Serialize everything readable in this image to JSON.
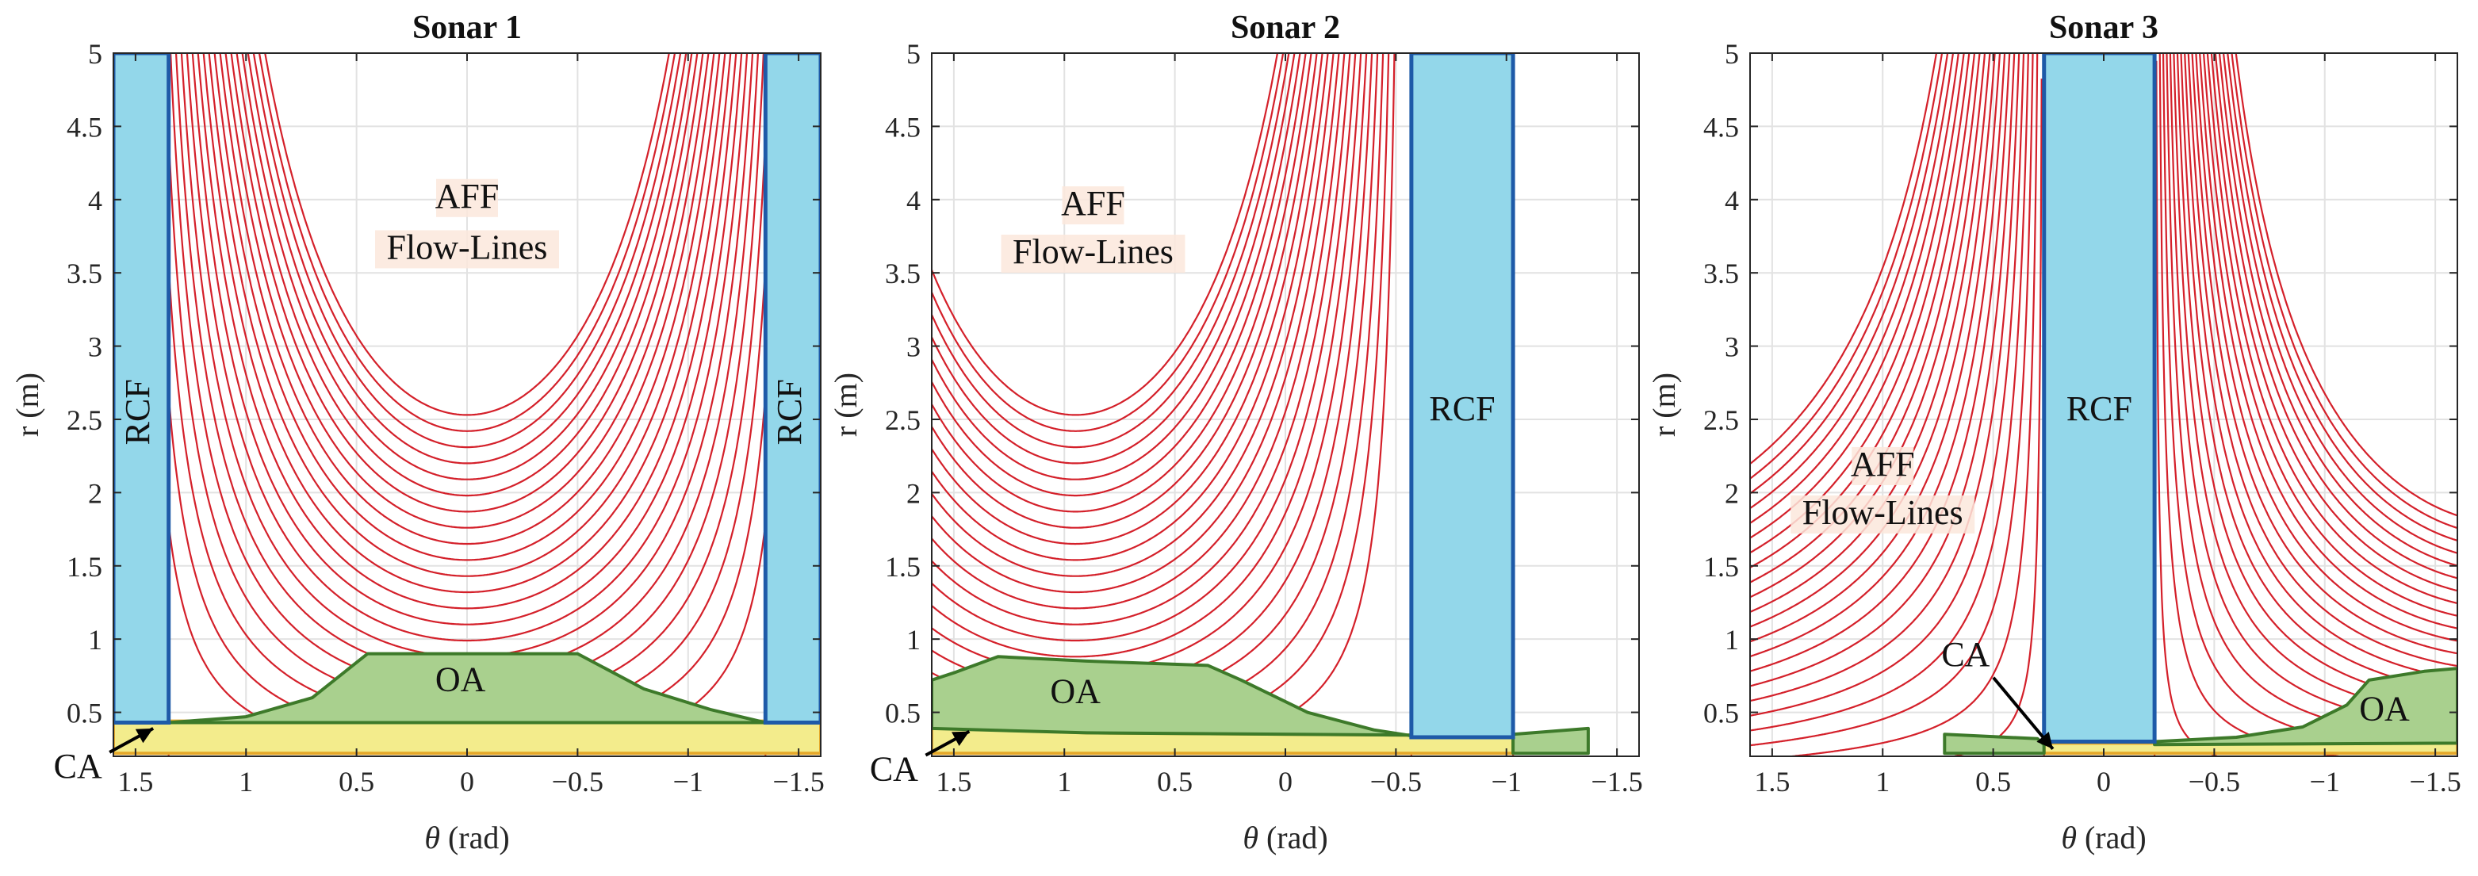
{
  "colors": {
    "flow_line": "#d4202a",
    "rcf_fill": "#93d7ea",
    "rcf_edge": "#1e5aa8",
    "oa_fill": "#a9d08e",
    "oa_edge": "#3d7a2a",
    "ca_fill": "#f3ec8c",
    "ca_edge": "#e5a82a",
    "grid": "#e2e2e2",
    "axes": "#262626",
    "label_bg": "#fbe7dc"
  },
  "chart_data": [
    {
      "type": "line",
      "title": "Sonar 1",
      "xlabel_symbol": "θ",
      "xlabel_unit": "(rad)",
      "ylabel": "r (m)",
      "xlim": [
        1.6,
        -1.6
      ],
      "ylim": [
        0.2,
        5
      ],
      "xticks": [
        1.5,
        1,
        0.5,
        0,
        -0.5,
        -1,
        -1.5
      ],
      "xtick_labels": [
        "1.5",
        "1",
        "0.5",
        "0",
        "−0.5",
        "−1",
        "−1.5"
      ],
      "yticks": [
        0.5,
        1,
        1.5,
        2,
        2.5,
        3,
        3.5,
        4,
        4.5,
        5
      ],
      "ytick_labels": [
        "0.5",
        "1",
        "1.5",
        "2",
        "2.5",
        "3",
        "3.5",
        "4",
        "4.5",
        "5"
      ],
      "grid": true,
      "flow_lines": {
        "family": "funnel",
        "center": 0.0,
        "count": 22,
        "wide": 1.5,
        "walls": [
          [
            1.35,
            2.05
          ],
          [
            -1.35,
            2.05
          ]
        ]
      },
      "rcf_regions": [
        {
          "theta_range": [
            1.35,
            1.6
          ],
          "r_range": [
            0.43,
            5
          ],
          "label": "RCF",
          "vertical": true
        },
        {
          "theta_range": [
            -1.6,
            -1.35
          ],
          "r_range": [
            0.43,
            5
          ],
          "label": "RCF",
          "vertical": true
        }
      ],
      "oa_regions": [
        {
          "label": "OA",
          "label_at": [
            0.03,
            0.7
          ],
          "polygon": [
            [
              1.35,
              0.43
            ],
            [
              1.0,
              0.47
            ],
            [
              0.7,
              0.6
            ],
            [
              0.5,
              0.84
            ],
            [
              0.45,
              0.9
            ],
            [
              0.2,
              0.9
            ],
            [
              -0.1,
              0.9
            ],
            [
              -0.5,
              0.9
            ],
            [
              -0.8,
              0.66
            ],
            [
              -1.1,
              0.52
            ],
            [
              -1.35,
              0.43
            ],
            [
              -1.35,
              0.43
            ],
            [
              1.35,
              0.43
            ]
          ]
        }
      ],
      "ca_regions": [
        {
          "polygon": [
            [
              1.6,
              0.44
            ],
            [
              -1.6,
              0.44
            ],
            [
              -1.6,
              0.22
            ],
            [
              1.6,
              0.22
            ]
          ]
        }
      ],
      "text_labels": [
        {
          "text": "AFF",
          "at": [
            0.0,
            4.0
          ]
        },
        {
          "text": "Flow-Lines",
          "at": [
            0.0,
            3.65
          ]
        }
      ],
      "ca_annotation": {
        "text": "CA",
        "arrow_to": [
          1.42,
          0.39
        ]
      }
    },
    {
      "type": "line",
      "title": "Sonar 2",
      "xlabel_symbol": "θ",
      "xlabel_unit": "(rad)",
      "ylabel": "r (m)",
      "xlim": [
        1.6,
        -1.6
      ],
      "ylim": [
        0.2,
        5
      ],
      "xticks": [
        1.5,
        1,
        0.5,
        0,
        -0.5,
        -1,
        -1.5
      ],
      "xtick_labels": [
        "1.5",
        "1",
        "0.5",
        "0",
        "−0.5",
        "−1",
        "−1.5"
      ],
      "yticks": [
        0.5,
        1,
        1.5,
        2,
        2.5,
        3,
        3.5,
        4,
        4.5,
        5
      ],
      "ytick_labels": [
        "0.5",
        "1",
        "1.5",
        "2",
        "2.5",
        "3",
        "3.5",
        "4",
        "4.5",
        "5"
      ],
      "grid": true,
      "flow_lines": {
        "family": "funnel",
        "center": 0.95,
        "count": 22,
        "wide": 1.5,
        "walls": [
          [
            -0.57,
            1.92
          ],
          [
            -1.03,
            2.1
          ]
        ]
      },
      "rcf_regions": [
        {
          "theta_range": [
            -1.03,
            -0.57
          ],
          "r_range": [
            0.33,
            5
          ],
          "label": "RCF",
          "vertical": false
        }
      ],
      "oa_regions": [
        {
          "label": "OA",
          "label_at": [
            0.95,
            0.62
          ],
          "polygon": [
            [
              1.6,
              0.72
            ],
            [
              1.5,
              0.77
            ],
            [
              1.3,
              0.88
            ],
            [
              0.9,
              0.85
            ],
            [
              0.35,
              0.82
            ],
            [
              0.2,
              0.72
            ],
            [
              -0.1,
              0.5
            ],
            [
              -0.4,
              0.38
            ],
            [
              -0.57,
              0.34
            ],
            [
              -1.03,
              0.34
            ],
            [
              -1.03,
              0.34
            ],
            [
              0.9,
              0.36
            ],
            [
              1.6,
              0.39
            ]
          ]
        },
        {
          "label": "",
          "label_at": [
            0,
            0
          ],
          "polygon": [
            [
              -1.03,
              0.35
            ],
            [
              -1.37,
              0.39
            ],
            [
              -1.37,
              0.22
            ],
            [
              -1.03,
              0.22
            ]
          ]
        }
      ],
      "ca_regions": [
        {
          "polygon": [
            [
              1.6,
              0.4
            ],
            [
              0.9,
              0.36
            ],
            [
              -1.03,
              0.34
            ],
            [
              -1.03,
              0.22
            ],
            [
              1.6,
              0.22
            ]
          ]
        }
      ],
      "text_labels": [
        {
          "text": "AFF",
          "at": [
            0.87,
            3.95
          ]
        },
        {
          "text": "Flow-Lines",
          "at": [
            0.87,
            3.62
          ]
        }
      ],
      "ca_annotation": {
        "text": "CA",
        "arrow_to": [
          1.43,
          0.37
        ]
      }
    },
    {
      "type": "line",
      "title": "Sonar 3",
      "xlabel_symbol": "θ",
      "xlabel_unit": "(rad)",
      "ylabel": "r (m)",
      "xlim": [
        1.6,
        -1.6
      ],
      "ylim": [
        0.2,
        5
      ],
      "xticks": [
        1.5,
        1,
        0.5,
        0,
        -0.5,
        -1,
        -1.5
      ],
      "xtick_labels": [
        "1.5",
        "1",
        "0.5",
        "0",
        "−0.5",
        "−1",
        "−1.5"
      ],
      "yticks": [
        0.5,
        1,
        1.5,
        2,
        2.5,
        3,
        3.5,
        4,
        4.5,
        5
      ],
      "ytick_labels": [
        "0.5",
        "1",
        "1.5",
        "2",
        "2.5",
        "3",
        "3.5",
        "4",
        "4.5",
        "5"
      ],
      "grid": true,
      "flow_lines": {
        "family": "dual",
        "center": 0.0,
        "count": 22,
        "walls": [
          [
            0.27,
            2.0
          ],
          [
            -0.23,
            2.0
          ]
        ]
      },
      "rcf_regions": [
        {
          "theta_range": [
            -0.23,
            0.27
          ],
          "r_range": [
            0.3,
            5
          ],
          "label": "RCF",
          "vertical": false
        }
      ],
      "oa_regions": [
        {
          "label": "OA",
          "label_at": [
            -1.27,
            0.5
          ],
          "polygon": [
            [
              -0.23,
              0.3
            ],
            [
              -0.6,
              0.33
            ],
            [
              -0.9,
              0.4
            ],
            [
              -1.1,
              0.55
            ],
            [
              -1.2,
              0.72
            ],
            [
              -1.45,
              0.78
            ],
            [
              -1.6,
              0.8
            ],
            [
              -1.6,
              0.29
            ],
            [
              -0.23,
              0.28
            ]
          ]
        },
        {
          "label": "",
          "label_at": [
            0,
            0
          ],
          "polygon": [
            [
              0.72,
              0.35
            ],
            [
              0.3,
              0.32
            ],
            [
              0.27,
              0.28
            ],
            [
              0.27,
              0.22
            ],
            [
              0.72,
              0.22
            ]
          ]
        }
      ],
      "ca_regions": [
        {
          "polygon": [
            [
              0.27,
              0.29
            ],
            [
              -0.23,
              0.29
            ],
            [
              -1.6,
              0.29
            ],
            [
              -1.6,
              0.22
            ],
            [
              0.27,
              0.22
            ]
          ]
        }
      ],
      "text_labels": [
        {
          "text": "AFF",
          "at": [
            1.0,
            2.17
          ]
        },
        {
          "text": "Flow-Lines",
          "at": [
            1.0,
            1.84
          ]
        }
      ],
      "ca_annotation": {
        "text": "CA",
        "arrow_to": [
          0.23,
          0.25
        ]
      }
    }
  ]
}
